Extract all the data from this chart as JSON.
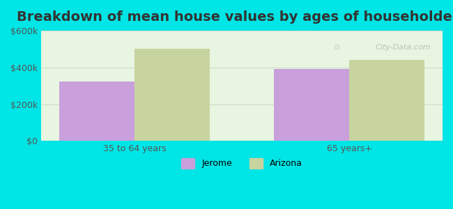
{
  "title": "Breakdown of mean house values by ages of householders",
  "categories": [
    "35 to 64 years",
    "65 years+"
  ],
  "jerome_values": [
    325000,
    390000
  ],
  "arizona_values": [
    500000,
    440000
  ],
  "jerome_color": "#c9a0dc",
  "arizona_color": "#c8d4a0",
  "background_color": "#00e5e5",
  "plot_bg_color": "#e8f5e0",
  "ylim": [
    0,
    600000
  ],
  "yticks": [
    0,
    200000,
    400000,
    600000
  ],
  "ytick_labels": [
    "$0",
    "$200k",
    "$400k",
    "$600k"
  ],
  "bar_width": 0.35,
  "legend_jerome": "Jerome",
  "legend_arizona": "Arizona",
  "title_fontsize": 14,
  "watermark": "City-Data.com"
}
